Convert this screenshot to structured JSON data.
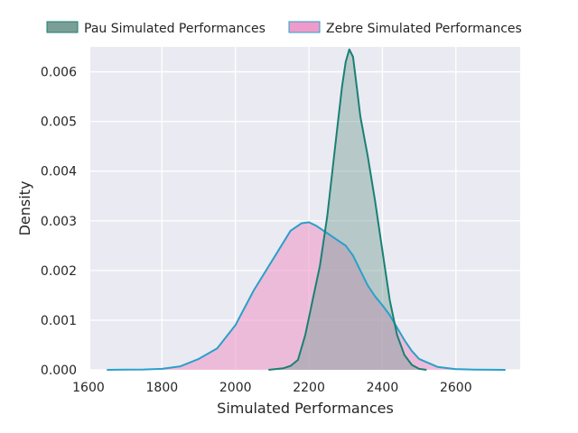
{
  "chart_data": {
    "type": "area",
    "title": "",
    "xlabel": "Simulated Performances",
    "ylabel": "Density",
    "xlim": [
      1605,
      2775
    ],
    "ylim": [
      0,
      0.0065
    ],
    "xticks": [
      1600,
      1800,
      2000,
      2200,
      2400,
      2600
    ],
    "yticks": [
      0.0,
      0.001,
      0.002,
      0.003,
      0.004,
      0.005,
      0.006
    ],
    "xtick_labels": [
      "1600",
      "1800",
      "2000",
      "2200",
      "2400",
      "2600"
    ],
    "ytick_labels": [
      "0.000",
      "0.001",
      "0.002",
      "0.003",
      "0.004",
      "0.005",
      "0.006"
    ],
    "grid": true,
    "legend_position": "top-center",
    "series": [
      {
        "name": "Pau Simulated Performances",
        "fill": "#7a9f96",
        "line": "#1a8074",
        "x": [
          2090,
          2130,
          2150,
          2170,
          2190,
          2210,
          2230,
          2250,
          2270,
          2290,
          2300,
          2310,
          2320,
          2330,
          2340,
          2360,
          2380,
          2400,
          2420,
          2440,
          2460,
          2480,
          2500,
          2520
        ],
        "y": [
          0.0,
          3e-05,
          8e-05,
          0.0002,
          0.0007,
          0.0014,
          0.0021,
          0.0031,
          0.0044,
          0.0057,
          0.0062,
          0.00645,
          0.0063,
          0.0057,
          0.0051,
          0.0043,
          0.0034,
          0.0024,
          0.0014,
          0.0007,
          0.0003,
          0.0001,
          2e-05,
          0.0
        ]
      },
      {
        "name": "Zebre Simulated Performances",
        "fill": "#ee9bca",
        "line": "#2aa0c9",
        "x": [
          1650,
          1700,
          1750,
          1800,
          1850,
          1900,
          1950,
          2000,
          2050,
          2100,
          2150,
          2180,
          2200,
          2220,
          2250,
          2280,
          2300,
          2320,
          2340,
          2360,
          2380,
          2400,
          2420,
          2440,
          2460,
          2480,
          2500,
          2550,
          2600,
          2650,
          2700,
          2735
        ],
        "y": [
          0.0,
          3e-06,
          8e-06,
          2e-05,
          7e-05,
          0.00022,
          0.00043,
          0.0009,
          0.0016,
          0.0022,
          0.0028,
          0.00295,
          0.00297,
          0.0029,
          0.00275,
          0.0026,
          0.0025,
          0.0023,
          0.002,
          0.0017,
          0.00148,
          0.0013,
          0.0011,
          0.00085,
          0.0006,
          0.00038,
          0.00022,
          6e-05,
          1.5e-05,
          5e-06,
          1e-06,
          0.0
        ]
      }
    ]
  }
}
